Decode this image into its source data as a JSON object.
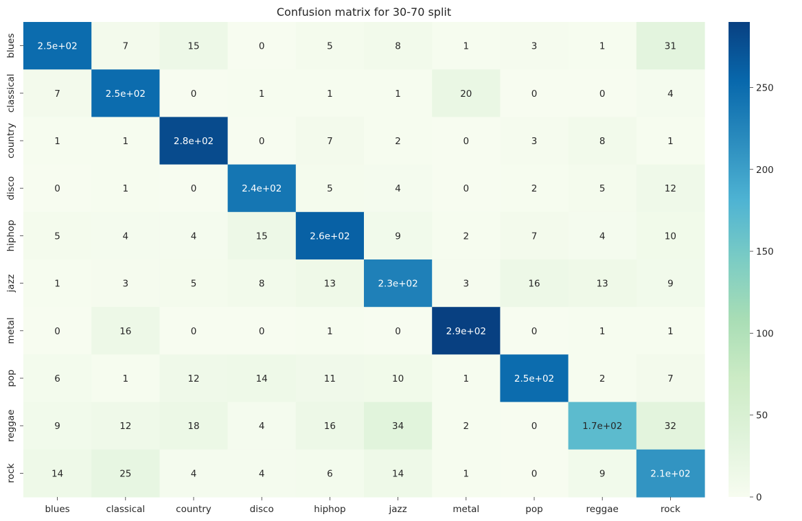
{
  "chart_data": {
    "type": "heatmap",
    "title": "Confusion matrix for 30-70 split",
    "xlabel": "",
    "ylabel": "",
    "x_categories": [
      "blues",
      "classical",
      "country",
      "disco",
      "hiphop",
      "jazz",
      "metal",
      "pop",
      "reggae",
      "rock"
    ],
    "y_categories": [
      "blues",
      "classical",
      "country",
      "disco",
      "hiphop",
      "jazz",
      "metal",
      "pop",
      "reggae",
      "rock"
    ],
    "values": [
      [
        250,
        7,
        15,
        0,
        5,
        8,
        1,
        3,
        1,
        31
      ],
      [
        7,
        250,
        0,
        1,
        1,
        1,
        20,
        0,
        0,
        4
      ],
      [
        1,
        1,
        280,
        0,
        7,
        2,
        0,
        3,
        8,
        1
      ],
      [
        0,
        1,
        0,
        240,
        5,
        4,
        0,
        2,
        5,
        12
      ],
      [
        5,
        4,
        4,
        15,
        260,
        9,
        2,
        7,
        4,
        10
      ],
      [
        1,
        3,
        5,
        8,
        13,
        230,
        3,
        16,
        13,
        9
      ],
      [
        0,
        16,
        0,
        0,
        1,
        0,
        290,
        0,
        1,
        1
      ],
      [
        6,
        1,
        12,
        14,
        11,
        10,
        1,
        250,
        2,
        7
      ],
      [
        9,
        12,
        18,
        4,
        16,
        34,
        2,
        0,
        170,
        32
      ],
      [
        14,
        25,
        4,
        4,
        6,
        14,
        1,
        0,
        9,
        210
      ]
    ],
    "cell_labels": [
      [
        "2.5e+02",
        "7",
        "15",
        "0",
        "5",
        "8",
        "1",
        "3",
        "1",
        "31"
      ],
      [
        "7",
        "2.5e+02",
        "0",
        "1",
        "1",
        "1",
        "20",
        "0",
        "0",
        "4"
      ],
      [
        "1",
        "1",
        "2.8e+02",
        "0",
        "7",
        "2",
        "0",
        "3",
        "8",
        "1"
      ],
      [
        "0",
        "1",
        "0",
        "2.4e+02",
        "5",
        "4",
        "0",
        "2",
        "5",
        "12"
      ],
      [
        "5",
        "4",
        "4",
        "15",
        "2.6e+02",
        "9",
        "2",
        "7",
        "4",
        "10"
      ],
      [
        "1",
        "3",
        "5",
        "8",
        "13",
        "2.3e+02",
        "3",
        "16",
        "13",
        "9"
      ],
      [
        "0",
        "16",
        "0",
        "0",
        "1",
        "0",
        "2.9e+02",
        "0",
        "1",
        "1"
      ],
      [
        "6",
        "1",
        "12",
        "14",
        "11",
        "10",
        "1",
        "2.5e+02",
        "2",
        "7"
      ],
      [
        "9",
        "12",
        "18",
        "4",
        "16",
        "34",
        "2",
        "0",
        "1.7e+02",
        "32"
      ],
      [
        "14",
        "25",
        "4",
        "4",
        "6",
        "14",
        "1",
        "0",
        "9",
        "2.1e+02"
      ]
    ],
    "colormap": "GnBu",
    "colormap_stops": [
      "#f7fcf0",
      "#e0f3db",
      "#ccebc5",
      "#a8ddb5",
      "#7bccc4",
      "#4eb3d3",
      "#2b8cbe",
      "#0868ac",
      "#084081"
    ],
    "color_range": [
      0,
      290
    ],
    "colorbar_ticks": [
      0,
      50,
      100,
      150,
      200,
      250
    ],
    "colorbar_tick_labels": [
      "0",
      "50",
      "100",
      "150",
      "200",
      "250"
    ],
    "label_text_dark": "#262626",
    "label_text_light": "#ffffff",
    "grid": false,
    "legend_placement": "right"
  }
}
